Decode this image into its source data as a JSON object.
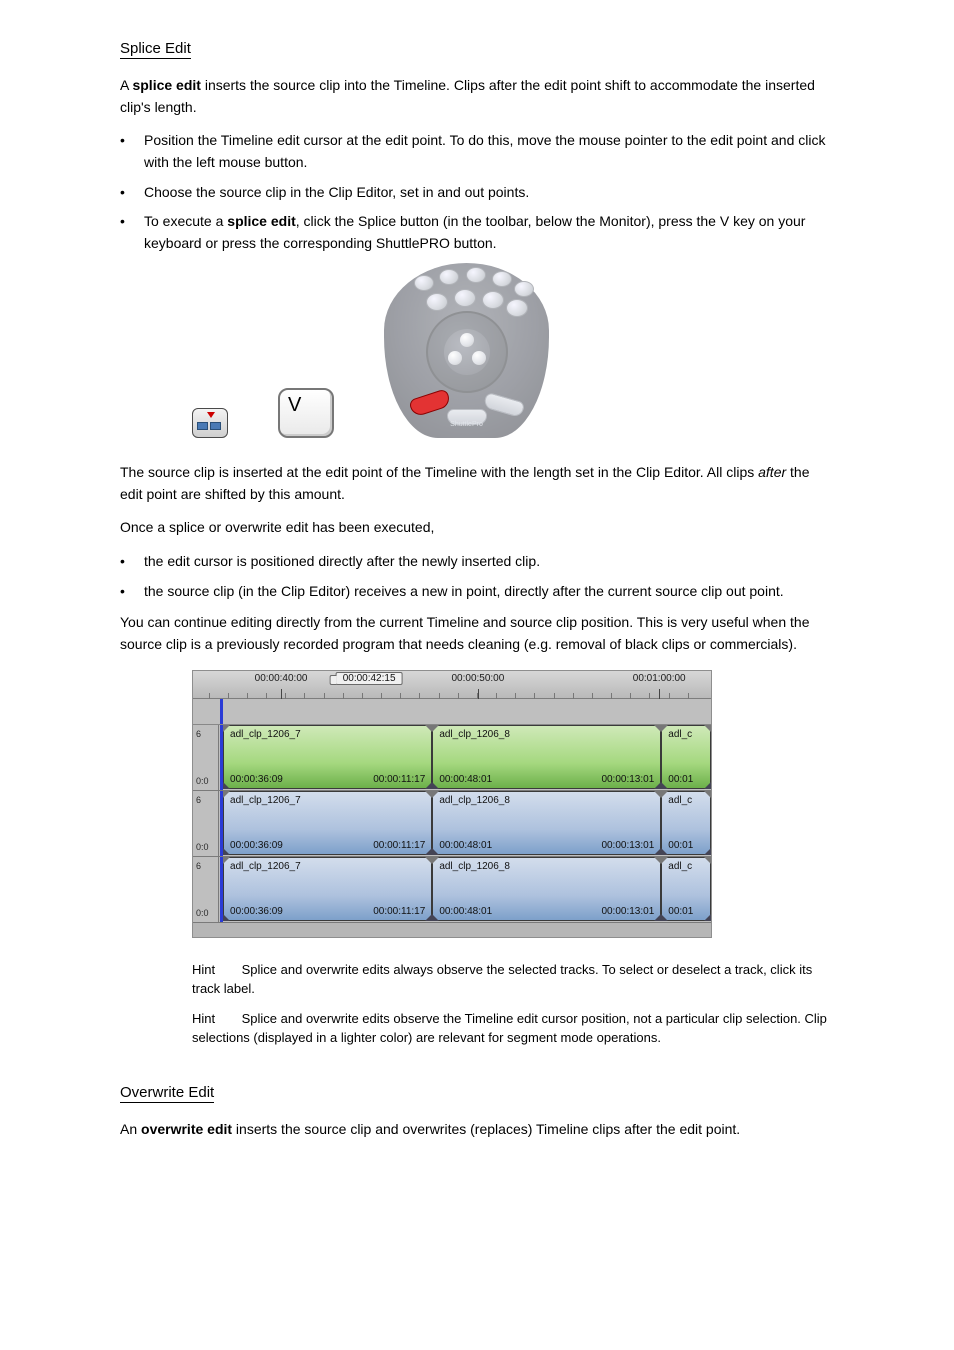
{
  "section1": {
    "title": "Splice Edit",
    "intro_pre": "A ",
    "intro_bold": "splice edit",
    "intro_post": " inserts the source clip into the Timeline. Clips after the edit point shift to accommodate the inserted clip's length.",
    "steps": [
      "Position the Timeline edit cursor at the edit point. To do this, move the mouse pointer to the edit point and click with the left mouse button.",
      "Choose the source clip in the Clip Editor, set in and out points.",
      {
        "pre": "To execute a ",
        "bold": "splice edit",
        "post": ", click the Splice button (in the toolbar, below the Monitor), press the V key on your keyboard or press the corresponding ShuttlePRO button."
      }
    ],
    "key_label": "V"
  },
  "afterSplice": {
    "pre": "The source clip is inserted at the edit point of the Timeline with the length set in the Clip Editor. All clips ",
    "ital": "after",
    "post": " the edit point are shifted by this amount."
  },
  "executed": {
    "lead": "Once a splice or overwrite edit has been executed,",
    "b1": "the edit cursor is positioned directly after the newly inserted clip.",
    "b2": "the source clip (in the Clip Editor) receives a new in point, directly after the current source clip out point."
  },
  "continueText": "You can continue editing directly from the current Timeline and source clip position. This is very useful when the source clip is a previously recorded program that needs cleaning (e.g. removal of black clips or commercials).",
  "timeline": {
    "ruler_labels": [
      {
        "text": "00:00:40:00",
        "pos_pct": 17
      },
      {
        "text": "00:00:50:00",
        "pos_pct": 55
      },
      {
        "text": "00:01:00:00",
        "pos_pct": 90
      }
    ],
    "cti_label": "00:00:42:15",
    "cti_pos_pct": 34,
    "playhead_pos_pct": 5.2,
    "gutter_top": "6",
    "gutter_bot": "0:0",
    "tracks": [
      {
        "color": "green",
        "clips": [
          {
            "name": "adl_clp_1206_7",
            "in": "00:00:36:09",
            "out": "00:00:11:17",
            "left_pct": 5.8,
            "width_pct": 40.4
          },
          {
            "name": "adl_clp_1206_8",
            "in": "00:00:48:01",
            "out": "00:00:13:01",
            "left_pct": 46.2,
            "width_pct": 44.2
          },
          {
            "name": "adl_c",
            "in": "00:01",
            "out": "",
            "left_pct": 90.4,
            "width_pct": 9.6
          }
        ]
      },
      {
        "color": "blue",
        "clips": [
          {
            "name": "adl_clp_1206_7",
            "in": "00:00:36:09",
            "out": "00:00:11:17",
            "left_pct": 5.8,
            "width_pct": 40.4
          },
          {
            "name": "adl_clp_1206_8",
            "in": "00:00:48:01",
            "out": "00:00:13:01",
            "left_pct": 46.2,
            "width_pct": 44.2
          },
          {
            "name": "adl_c",
            "in": "00:01",
            "out": "",
            "left_pct": 90.4,
            "width_pct": 9.6
          }
        ]
      },
      {
        "color": "blue",
        "clips": [
          {
            "name": "adl_clp_1206_7",
            "in": "00:00:36:09",
            "out": "00:00:11:17",
            "left_pct": 5.8,
            "width_pct": 40.4
          },
          {
            "name": "adl_clp_1206_8",
            "in": "00:00:48:01",
            "out": "00:00:13:01",
            "left_pct": 46.2,
            "width_pct": 44.2
          },
          {
            "name": "adl_c",
            "in": "00:01",
            "out": "",
            "left_pct": 90.4,
            "width_pct": 9.6
          }
        ]
      }
    ]
  },
  "hints": {
    "hint1_label": "Hint",
    "hint1_text": "Splice and overwrite edits always observe the selected tracks. To select or deselect a track, click its track label.",
    "hint2_label": "Hint",
    "hint2_text": "Splice and overwrite edits observe the Timeline edit cursor position, not a particular clip selection. Clip selections (displayed in a lighter color) are relevant for segment mode operations."
  },
  "section2": {
    "title": "Overwrite Edit",
    "intro_pre": "An ",
    "intro_bold": "overwrite edit",
    "intro_post": " inserts the source clip and overwrites (replaces) Timeline clips after the edit point."
  },
  "colors": {
    "green_clip": "#8fcf6f",
    "blue_clip": "#9db9d9",
    "cti": "#2a3bd6",
    "shuttle_red": "#e33333"
  }
}
